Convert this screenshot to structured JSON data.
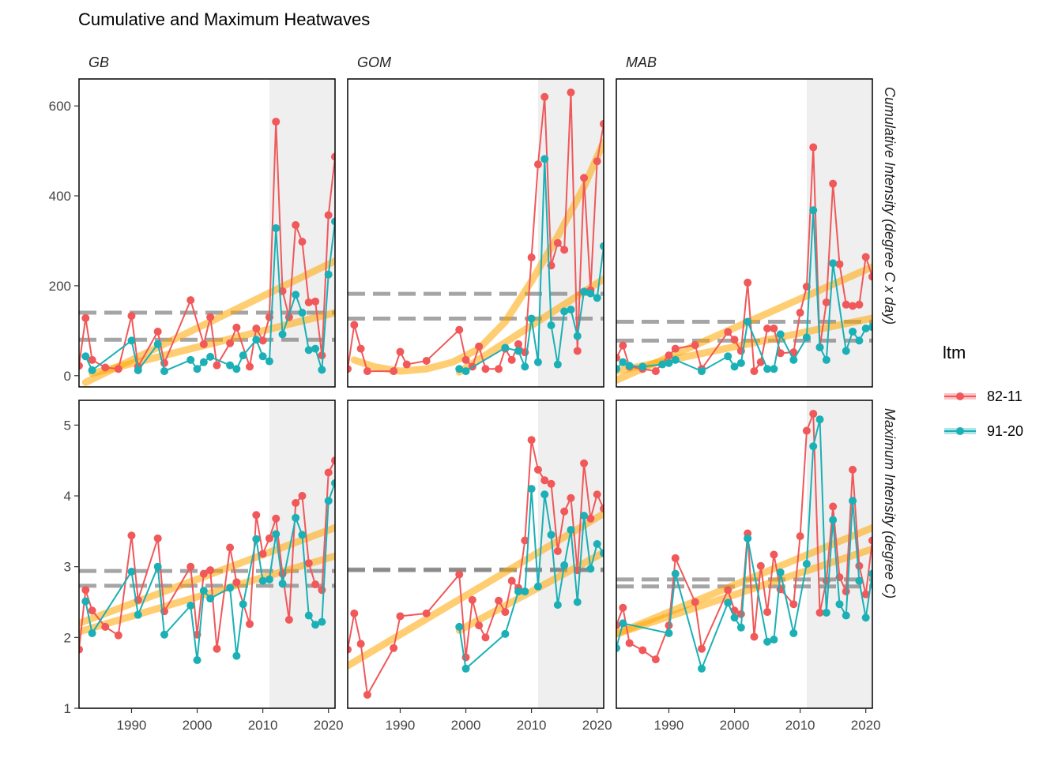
{
  "title": "Cumulative and Maximum Heatwaves",
  "legend": {
    "title": "ltm",
    "items": [
      {
        "label": "82-11",
        "color": "#F0585A"
      },
      {
        "label": "91-20",
        "color": "#1AB0B5"
      }
    ]
  },
  "chart_data": {
    "type": "line",
    "facets": {
      "columns": [
        "GB",
        "GOM",
        "MAB"
      ],
      "rows": [
        "Cumulative Intensity (degree C x day)",
        "Maximum Intensity (degree C)"
      ]
    },
    "x_range": [
      1982,
      2021
    ],
    "x_ticks": [
      1990,
      2000,
      2010,
      2020
    ],
    "shaded_period": [
      2011,
      2021
    ],
    "trend_color": "#FFA500",
    "colors": {
      "82-11": "#F0585A",
      "91-20": "#1AB0B5",
      "reference": "#808080",
      "shade": "#EFEFEF"
    },
    "panels": [
      {
        "region": "GB",
        "metric": "Cumulative Intensity (degree C x day)",
        "ylim": [
          -25,
          660
        ],
        "yticks": [
          0,
          200,
          400,
          600
        ],
        "reference_lines": [
          140,
          80
        ],
        "trends": [
          {
            "x": [
              1983,
              2021
            ],
            "y": [
              -15,
              255
            ]
          },
          {
            "x": [
              1984,
              2021
            ],
            "y": [
              5,
              140
            ]
          }
        ],
        "series": [
          {
            "name": "82-11",
            "x": [
              1982,
              1983,
              1984,
              1986,
              1988,
              1990,
              1991,
              1994,
              1995,
              1999,
              2001,
              2002,
              2003,
              2005,
              2006,
              2008,
              2009,
              2010,
              2011,
              2012,
              2013,
              2014,
              2015,
              2016,
              2017,
              2018,
              2019,
              2020,
              2021
            ],
            "y": [
              22,
              128,
              35,
              18,
              15,
              133,
              20,
              98,
              28,
              168,
              70,
              130,
              23,
              72,
              107,
              20,
              105,
              78,
              130,
              565,
              188,
              130,
              335,
              298,
              163,
              165,
              45,
              357,
              487
            ]
          },
          {
            "name": "91-20",
            "x": [
              1983,
              1984,
              1990,
              1991,
              1994,
              1995,
              1999,
              2000,
              2001,
              2002,
              2005,
              2006,
              2007,
              2009,
              2010,
              2011,
              2012,
              2013,
              2015,
              2016,
              2017,
              2018,
              2019,
              2020,
              2021
            ],
            "y": [
              43,
              12,
              78,
              12,
              70,
              10,
              35,
              15,
              30,
              42,
              23,
              15,
              45,
              80,
              43,
              32,
              328,
              92,
              180,
              140,
              57,
              60,
              13,
              225,
              343
            ]
          }
        ]
      },
      {
        "region": "GOM",
        "metric": "Cumulative Intensity (degree C x day)",
        "ylim": [
          -25,
          660
        ],
        "yticks": [
          0,
          200,
          400,
          600
        ],
        "reference_lines": [
          182,
          127
        ],
        "trends": [
          {
            "x": [
              1983,
              1986,
              1990,
              1994,
              1998,
              2002,
              2006,
              2010,
              2014,
              2018,
              2021
            ],
            "y": [
              35,
              20,
              10,
              15,
              30,
              60,
              120,
              210,
              310,
              420,
              520
            ]
          },
          {
            "x": [
              1999,
              2021
            ],
            "y": [
              8,
              215
            ]
          }
        ],
        "series": [
          {
            "name": "82-11",
            "x": [
              1982,
              1983,
              1984,
              1985,
              1989,
              1990,
              1991,
              1994,
              1999,
              2000,
              2001,
              2002,
              2003,
              2005,
              2006,
              2007,
              2008,
              2009,
              2010,
              2011,
              2012,
              2013,
              2014,
              2015,
              2016,
              2017,
              2018,
              2019,
              2020,
              2021
            ],
            "y": [
              15,
              113,
              60,
              10,
              10,
              53,
              25,
              33,
              102,
              35,
              20,
              65,
              15,
              15,
              60,
              35,
              70,
              52,
              263,
              470,
              620,
              245,
              295,
              280,
              630,
              55,
              440,
              190,
              477,
              560
            ]
          },
          {
            "name": "91-20",
            "x": [
              1999,
              2000,
              2006,
              2008,
              2009,
              2010,
              2011,
              2012,
              2013,
              2014,
              2015,
              2016,
              2017,
              2018,
              2019,
              2020,
              2021
            ],
            "y": [
              15,
              10,
              62,
              55,
              20,
              127,
              30,
              482,
              112,
              25,
              143,
              147,
              88,
              187,
              183,
              173,
              288
            ]
          }
        ]
      },
      {
        "region": "MAB",
        "metric": "Cumulative Intensity (degree C x day)",
        "ylim": [
          -25,
          660
        ],
        "yticks": [
          0,
          200,
          400,
          600
        ],
        "reference_lines": [
          120,
          78
        ],
        "trends": [
          {
            "x": [
              1982,
              2021
            ],
            "y": [
              -10,
              242
            ]
          },
          {
            "x": [
              1982,
              2021
            ],
            "y": [
              10,
              128
            ]
          }
        ],
        "series": [
          {
            "name": "82-11",
            "x": [
              1982,
              1983,
              1984,
              1986,
              1988,
              1990,
              1991,
              1994,
              1995,
              1999,
              2000,
              2001,
              2002,
              2003,
              2004,
              2005,
              2006,
              2007,
              2009,
              2010,
              2011,
              2012,
              2013,
              2014,
              2015,
              2016,
              2017,
              2018,
              2019,
              2020,
              2021
            ],
            "y": [
              40,
              67,
              20,
              15,
              10,
              45,
              60,
              68,
              15,
              97,
              80,
              55,
              207,
              10,
              30,
              105,
              105,
              50,
              52,
              140,
              198,
              508,
              63,
              163,
              427,
              248,
              158,
              155,
              158,
              264,
              220
            ]
          },
          {
            "name": "91-20",
            "x": [
              1982,
              1983,
              1984,
              1986,
              1989,
              1990,
              1991,
              1995,
              1999,
              2000,
              2001,
              2002,
              2005,
              2006,
              2007,
              2009,
              2011,
              2012,
              2013,
              2014,
              2015,
              2017,
              2018,
              2019,
              2020,
              2021
            ],
            "y": [
              15,
              30,
              22,
              20,
              25,
              28,
              35,
              10,
              43,
              20,
              28,
              120,
              15,
              15,
              92,
              35,
              85,
              368,
              63,
              35,
              250,
              55,
              98,
              78,
              105,
              108
            ]
          }
        ]
      },
      {
        "region": "GB",
        "metric": "Maximum Intensity (degree C)",
        "ylim": [
          1,
          5.35
        ],
        "yticks": [
          1,
          2,
          3,
          4,
          5
        ],
        "reference_lines": [
          2.94,
          2.73
        ],
        "trends": [
          {
            "x": [
              1982,
              2021
            ],
            "y": [
              2.2,
              3.55
            ]
          },
          {
            "x": [
              1982,
              2021
            ],
            "y": [
              2.08,
              3.15
            ]
          }
        ],
        "series": [
          {
            "name": "82-11",
            "x": [
              1982,
              1983,
              1984,
              1986,
              1988,
              1990,
              1991,
              1994,
              1995,
              1999,
              2000,
              2001,
              2002,
              2003,
              2005,
              2006,
              2008,
              2009,
              2010,
              2011,
              2012,
              2013,
              2014,
              2015,
              2016,
              2017,
              2018,
              2019,
              2020,
              2021
            ],
            "y": [
              1.83,
              2.67,
              2.38,
              2.15,
              2.03,
              3.44,
              2.53,
              3.4,
              2.37,
              3.0,
              2.04,
              2.9,
              2.95,
              1.84,
              3.27,
              2.78,
              2.19,
              3.73,
              3.18,
              3.4,
              3.68,
              2.9,
              2.25,
              3.9,
              4.0,
              3.05,
              2.75,
              2.67,
              4.33,
              4.5
            ]
          },
          {
            "name": "91-20",
            "x": [
              1983,
              1984,
              1990,
              1991,
              1994,
              1995,
              1999,
              2000,
              2001,
              2002,
              2005,
              2006,
              2007,
              2009,
              2010,
              2011,
              2012,
              2013,
              2015,
              2016,
              2017,
              2018,
              2019,
              2020,
              2021
            ],
            "y": [
              2.51,
              2.06,
              2.93,
              2.32,
              3.0,
              2.04,
              2.45,
              1.68,
              2.66,
              2.55,
              2.7,
              1.74,
              2.47,
              3.39,
              2.8,
              2.82,
              3.46,
              2.76,
              3.69,
              3.45,
              2.31,
              2.18,
              2.22,
              3.93,
              4.18
            ]
          }
        ]
      },
      {
        "region": "GOM",
        "metric": "Maximum Intensity (degree C)",
        "ylim": [
          1,
          5.35
        ],
        "yticks": [
          1,
          2,
          3,
          4,
          5
        ],
        "reference_lines": [
          2.96,
          2.95
        ],
        "trends": [
          {
            "x": [
              1982,
              2021
            ],
            "y": [
              1.6,
              3.75
            ]
          },
          {
            "x": [
              1999,
              2021
            ],
            "y": [
              2.1,
              3.2
            ]
          }
        ],
        "series": [
          {
            "name": "82-11",
            "x": [
              1982,
              1983,
              1984,
              1985,
              1989,
              1990,
              1994,
              1999,
              2000,
              2001,
              2002,
              2003,
              2005,
              2006,
              2007,
              2008,
              2009,
              2010,
              2011,
              2012,
              2013,
              2014,
              2015,
              2016,
              2017,
              2018,
              2019,
              2020,
              2021
            ],
            "y": [
              1.83,
              2.34,
              1.91,
              1.19,
              1.85,
              2.3,
              2.34,
              2.89,
              1.72,
              2.53,
              2.17,
              2.0,
              2.52,
              2.36,
              2.8,
              2.7,
              3.37,
              4.79,
              4.37,
              4.22,
              4.17,
              3.22,
              3.78,
              3.97,
              2.95,
              4.46,
              3.68,
              4.02,
              3.82
            ]
          },
          {
            "name": "91-20",
            "x": [
              1999,
              2000,
              2006,
              2008,
              2009,
              2010,
              2011,
              2012,
              2013,
              2014,
              2015,
              2016,
              2017,
              2018,
              2019,
              2020,
              2021
            ],
            "y": [
              2.15,
              1.56,
              2.05,
              2.65,
              2.65,
              4.1,
              2.72,
              4.02,
              3.45,
              2.46,
              3.02,
              3.52,
              2.5,
              3.72,
              2.97,
              3.32,
              3.19
            ]
          }
        ]
      },
      {
        "region": "MAB",
        "metric": "Maximum Intensity (degree C)",
        "ylim": [
          1,
          5.35
        ],
        "yticks": [
          1,
          2,
          3,
          4,
          5
        ],
        "reference_lines": [
          2.82,
          2.72
        ],
        "trends": [
          {
            "x": [
              1982,
              2021
            ],
            "y": [
              2.05,
              3.55
            ]
          },
          {
            "x": [
              1982,
              2021
            ],
            "y": [
              2.05,
              3.25
            ]
          }
        ],
        "series": [
          {
            "name": "82-11",
            "x": [
              1982,
              1983,
              1984,
              1986,
              1988,
              1990,
              1991,
              1994,
              1995,
              1999,
              2000,
              2001,
              2002,
              2003,
              2004,
              2005,
              2006,
              2007,
              2009,
              2010,
              2011,
              2012,
              2013,
              2014,
              2015,
              2016,
              2017,
              2018,
              2019,
              2020,
              2021
            ],
            "y": [
              2.17,
              2.42,
              1.92,
              1.82,
              1.69,
              2.17,
              3.12,
              2.5,
              1.84,
              2.67,
              2.38,
              2.33,
              3.47,
              2.01,
              3.01,
              2.36,
              3.17,
              2.68,
              2.47,
              3.43,
              4.92,
              5.16,
              2.35,
              2.8,
              3.85,
              2.85,
              2.65,
              4.37,
              3.01,
              2.61,
              3.37
            ]
          },
          {
            "name": "91-20",
            "x": [
              1982,
              1983,
              1990,
              1991,
              1995,
              1999,
              2000,
              2001,
              2002,
              2005,
              2006,
              2007,
              2009,
              2011,
              2012,
              2013,
              2014,
              2015,
              2016,
              2017,
              2018,
              2019,
              2020,
              2021
            ],
            "y": [
              1.85,
              2.2,
              2.06,
              2.9,
              1.56,
              2.49,
              2.28,
              2.14,
              3.4,
              1.94,
              1.97,
              2.92,
              2.06,
              3.04,
              4.7,
              5.08,
              2.35,
              3.66,
              2.47,
              2.31,
              3.93,
              2.8,
              2.28,
              2.9
            ]
          }
        ]
      }
    ]
  }
}
